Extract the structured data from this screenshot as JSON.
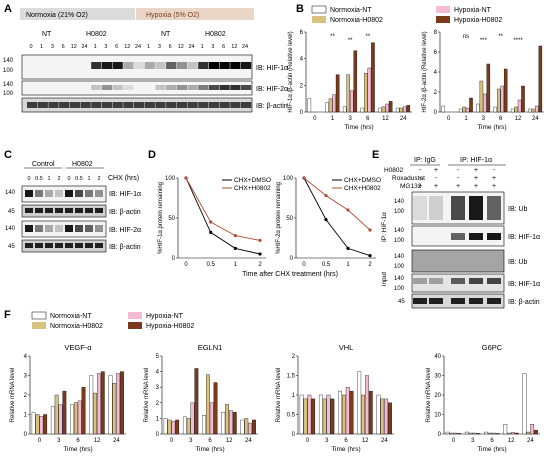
{
  "panels": {
    "A": {
      "letter": "A",
      "headers": {
        "normoxia": "Normoxia (21% O2)",
        "hypoxia": "Hypoxia (5% O2)"
      },
      "groups": [
        "NT",
        "H0802",
        "NT",
        "H0802"
      ],
      "times": [
        "0",
        "1",
        "3",
        "6",
        "12",
        "24",
        "1",
        "3",
        "6",
        "12",
        "24",
        "1",
        "3",
        "6",
        "12",
        "24",
        "1",
        "3",
        "6",
        "12",
        "24"
      ],
      "blots": [
        {
          "label": "IB: HIF-1α",
          "markers": [
            "140",
            "100"
          ]
        },
        {
          "label": "IB: HIF-2α",
          "markers": [
            "140",
            "100"
          ]
        },
        {
          "label": "IB: β-actin",
          "markers": []
        }
      ]
    },
    "B": {
      "letter": "B",
      "legend_left": [
        "Normoxia-NT",
        "Normoxia-H0802"
      ],
      "legend_right": [
        "Hypoxia-NT",
        "Hypoxia-H0802"
      ],
      "colors": {
        "normoxia_nt": "#ffffff",
        "normoxia_h0802": "#d9c27f",
        "hypoxia_nt": "#f4bcd4",
        "hypoxia_h0802": "#7a3b1c"
      }
    },
    "C": {
      "letter": "C",
      "groups": [
        "Control",
        "H0802"
      ],
      "cycl_label": "CHX (hrs)",
      "times": [
        "0",
        "0.5",
        "1",
        "2",
        "0",
        "0.5",
        "1",
        "2"
      ],
      "blots": [
        {
          "label": "IB: HIF-1α",
          "marker": "140"
        },
        {
          "label": "IB: β-actin",
          "marker": "45"
        },
        {
          "label": "IB: HIF-2α",
          "marker": "140"
        },
        {
          "label": "IB: β-actin",
          "marker": "45"
        }
      ]
    },
    "D": {
      "letter": "D",
      "legend": [
        "CHX+DMSO",
        "CHX+H0802"
      ],
      "xlabel": "Time after CHX treatment (hrs)"
    },
    "E": {
      "letter": "E",
      "ip_igg": "IP: IgG",
      "ip_hif": "IP: HIF-1α",
      "conditions": [
        {
          "label": "H0802",
          "signs": [
            "-",
            "+",
            "-",
            "+",
            "-"
          ]
        },
        {
          "label": "Roxadustat",
          "signs": [
            "-",
            "-",
            "-",
            "+",
            "+"
          ]
        },
        {
          "label": "MG132",
          "signs": [
            "+",
            "+",
            "+",
            "+",
            "+"
          ]
        }
      ],
      "side_ip": "IP: HIF-1α",
      "side_input": "input",
      "blots": [
        {
          "label": "IB: Ub",
          "markers": [
            "140",
            "100"
          ]
        },
        {
          "label": "IB: HIF-1α",
          "markers": [
            "140",
            "100"
          ]
        },
        {
          "label": "IB: Ub",
          "markers": [
            "140",
            "100"
          ]
        },
        {
          "label": "IB: HIF-1α",
          "markers": [
            "140",
            "100"
          ]
        },
        {
          "label": "IB: β-actin",
          "markers": [
            "45"
          ]
        }
      ]
    },
    "F": {
      "letter": "F",
      "legend": [
        "Normoxia-NT",
        "Normoxia-H0802",
        "Hypoxia-NT",
        "Hypoxia-H0802"
      ],
      "ylabel": "Relative mRNA level",
      "xlabel": "Time (hrs)"
    }
  },
  "chart_data": [
    {
      "type": "bar",
      "id": "B1",
      "ylabel": "HIF-1α /β-actin (Relative level)",
      "xlabel": "Time (hrs)",
      "categories": [
        "0",
        "1",
        "3",
        "6",
        "12",
        "24"
      ],
      "ylim": [
        0,
        6
      ],
      "yticks": [
        0,
        2,
        4,
        6
      ],
      "series": [
        {
          "name": "Normoxia-NT",
          "values": [
            1.0,
            0.7,
            0.4,
            0.3,
            0.3,
            0.3
          ]
        },
        {
          "name": "Normoxia-H0802",
          "values": [
            0.0,
            1.0,
            2.8,
            2.9,
            0.4,
            0.3
          ]
        },
        {
          "name": "Hypoxia-NT",
          "values": [
            0.0,
            1.3,
            1.6,
            3.3,
            0.6,
            0.4
          ]
        },
        {
          "name": "Hypoxia-H0802",
          "values": [
            0.0,
            2.8,
            4.6,
            5.2,
            0.8,
            0.5
          ]
        }
      ],
      "annotations": [
        "**",
        "**",
        "**"
      ]
    },
    {
      "type": "bar",
      "id": "B2",
      "ylabel": "HIF-2α /β-actin (Relative level)",
      "xlabel": "Time (hrs)",
      "categories": [
        "0",
        "1",
        "3",
        "6",
        "12",
        "24"
      ],
      "ylim": [
        0,
        8
      ],
      "yticks": [
        0,
        2,
        4,
        6,
        8
      ],
      "series": [
        {
          "name": "Normoxia-NT",
          "values": [
            0.6,
            0.3,
            0.8,
            0.5,
            0.3,
            0.3
          ]
        },
        {
          "name": "Normoxia-H0802",
          "values": [
            0.0,
            0.5,
            3.1,
            2.3,
            0.5,
            0.3
          ]
        },
        {
          "name": "Hypoxia-NT",
          "values": [
            0.0,
            0.4,
            1.8,
            2.6,
            1.2,
            0.6
          ]
        },
        {
          "name": "Hypoxia-H0802",
          "values": [
            0.0,
            1.4,
            4.8,
            4.3,
            2.6,
            6.6
          ]
        }
      ],
      "annotations": [
        "ns",
        "***",
        "**",
        "****"
      ]
    },
    {
      "type": "line",
      "id": "D1",
      "ylabel": "%HIF-1α protein remaining",
      "x": [
        "0",
        "0.5",
        "1",
        "2"
      ],
      "ylim": [
        0,
        100
      ],
      "yticks": [
        0,
        50,
        100
      ],
      "series": [
        {
          "name": "CHX+DMSO",
          "values": [
            100,
            32,
            12,
            5
          ]
        },
        {
          "name": "CHX+H0802",
          "values": [
            100,
            45,
            28,
            22
          ]
        }
      ]
    },
    {
      "type": "line",
      "id": "D2",
      "ylabel": "%HIF-2α protein remaining",
      "x": [
        "0",
        "0.5",
        "1",
        "2"
      ],
      "ylim": [
        0,
        100
      ],
      "yticks": [
        0,
        50,
        100
      ],
      "series": [
        {
          "name": "CHX+DMSO",
          "values": [
            100,
            48,
            12,
            3
          ]
        },
        {
          "name": "CHX+H0802",
          "values": [
            100,
            78,
            60,
            35
          ]
        }
      ]
    },
    {
      "type": "bar",
      "id": "F1",
      "title": "VEGF-α",
      "categories": [
        "0",
        "3",
        "6",
        "12",
        "24"
      ],
      "ylim": [
        0,
        4
      ],
      "yticks": [
        0,
        1,
        2,
        3,
        4
      ],
      "series": [
        {
          "name": "Normoxia-NT",
          "values": [
            1.1,
            1.4,
            1.5,
            3.0,
            3.0
          ]
        },
        {
          "name": "Normoxia-H0802",
          "values": [
            1.0,
            2.0,
            1.6,
            2.1,
            2.6
          ]
        },
        {
          "name": "Hypoxia-NT",
          "values": [
            0.9,
            1.5,
            1.7,
            3.1,
            3.1
          ]
        },
        {
          "name": "Hypoxia-H0802",
          "values": [
            1.0,
            2.2,
            2.4,
            3.2,
            3.2
          ]
        }
      ]
    },
    {
      "type": "bar",
      "id": "F2",
      "title": "EGLN1",
      "categories": [
        "0",
        "3",
        "6",
        "12",
        "24"
      ],
      "ylim": [
        0,
        5
      ],
      "yticks": [
        0,
        1,
        2,
        3,
        4,
        5
      ],
      "series": [
        {
          "name": "Normoxia-NT",
          "values": [
            1.0,
            1.1,
            1.2,
            1.4,
            0.9
          ]
        },
        {
          "name": "Normoxia-H0802",
          "values": [
            0.9,
            1.0,
            3.8,
            1.9,
            1.0
          ]
        },
        {
          "name": "Hypoxia-NT",
          "values": [
            0.8,
            2.0,
            2.0,
            1.5,
            0.7
          ]
        },
        {
          "name": "Hypoxia-H0802",
          "values": [
            0.9,
            4.2,
            3.3,
            1.4,
            0.9
          ]
        }
      ]
    },
    {
      "type": "bar",
      "id": "F3",
      "title": "VHL",
      "categories": [
        "0",
        "3",
        "6",
        "12",
        "24"
      ],
      "ylim": [
        0,
        2
      ],
      "yticks": [
        0,
        0.5,
        1.0,
        1.5,
        2.0
      ],
      "series": [
        {
          "name": "Normoxia-NT",
          "values": [
            1.0,
            1.0,
            1.1,
            1.6,
            1.0
          ]
        },
        {
          "name": "Normoxia-H0802",
          "values": [
            0.9,
            0.9,
            1.0,
            1.0,
            0.9
          ]
        },
        {
          "name": "Hypoxia-NT",
          "values": [
            1.0,
            1.0,
            1.2,
            1.5,
            0.9
          ]
        },
        {
          "name": "Hypoxia-H0802",
          "values": [
            0.9,
            0.9,
            1.1,
            1.1,
            0.8
          ]
        }
      ]
    },
    {
      "type": "bar",
      "id": "F4",
      "title": "G6PC",
      "categories": [
        "0",
        "3",
        "6",
        "12",
        "24"
      ],
      "ylim": [
        0,
        40
      ],
      "yticks": [
        0,
        10,
        20,
        30,
        40
      ],
      "series": [
        {
          "name": "Normoxia-NT",
          "values": [
            1.0,
            1.0,
            1.0,
            5.0,
            31.0
          ]
        },
        {
          "name": "Normoxia-H0802",
          "values": [
            0.5,
            0.5,
            0.5,
            0.5,
            1.0
          ]
        },
        {
          "name": "Hypoxia-NT",
          "values": [
            0.5,
            0.5,
            0.5,
            0.8,
            5.0
          ]
        },
        {
          "name": "Hypoxia-H0802",
          "values": [
            0.3,
            0.3,
            0.3,
            0.5,
            2.0
          ]
        }
      ]
    }
  ]
}
